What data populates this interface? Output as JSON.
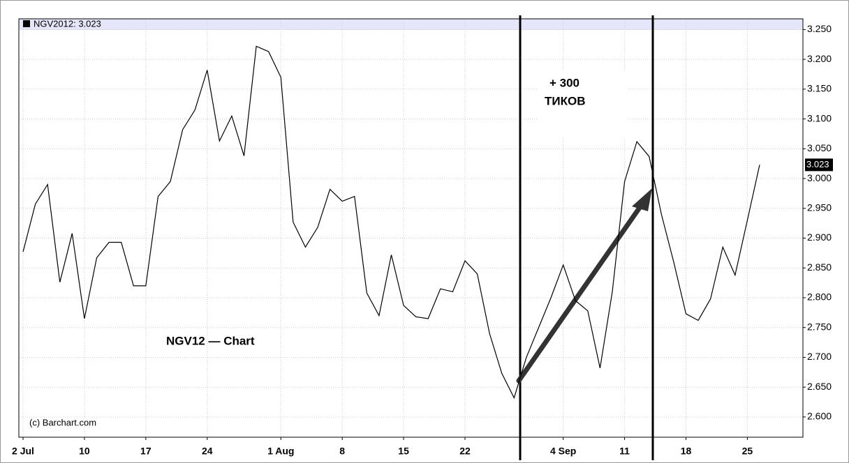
{
  "chart_data": {
    "type": "line",
    "title": "NGV2012: 3.023",
    "last_value_label": "3.023",
    "annotations": [
      "+ 300",
      "ТИКОВ",
      "NGV12 — Chart",
      "(c) Barchart.com"
    ],
    "categories": [
      "2 Jul",
      null,
      null,
      null,
      null,
      "10",
      null,
      null,
      null,
      null,
      "17",
      null,
      null,
      null,
      null,
      "24",
      null,
      null,
      null,
      null,
      null,
      "1 Aug",
      null,
      null,
      null,
      null,
      "8",
      null,
      null,
      null,
      null,
      "15",
      null,
      null,
      null,
      null,
      "22",
      null,
      null,
      null,
      null,
      null,
      null,
      null,
      "4 Sep",
      null,
      null,
      null,
      null,
      "11",
      null,
      null,
      null,
      null,
      "18",
      null,
      null,
      null,
      null,
      "25",
      null
    ],
    "series": [
      {
        "name": "NGV2012",
        "color": "#000000",
        "values": [
          2.877,
          2.957,
          2.99,
          2.826,
          2.908,
          2.765,
          2.867,
          2.893,
          2.893,
          2.82,
          2.82,
          2.97,
          2.995,
          3.082,
          3.115,
          3.182,
          3.063,
          3.105,
          3.038,
          3.222,
          3.213,
          3.17,
          2.927,
          2.885,
          2.918,
          2.982,
          2.962,
          2.97,
          2.808,
          2.77,
          2.872,
          2.787,
          2.768,
          2.765,
          2.815,
          2.81,
          2.862,
          2.84,
          2.74,
          2.673,
          2.632,
          2.7,
          2.75,
          2.8,
          2.855,
          2.795,
          2.778,
          2.682,
          2.81,
          2.995,
          3.062,
          3.037,
          2.94,
          2.86,
          2.773,
          2.762,
          2.798,
          2.885,
          2.838,
          2.93,
          3.023
        ]
      }
    ],
    "ylim": [
      2.566,
      3.268
    ],
    "yticks": [
      {
        "value": 2.6,
        "label": "2.600"
      },
      {
        "value": 2.65,
        "label": "2.650"
      },
      {
        "value": 2.7,
        "label": "2.700"
      },
      {
        "value": 2.75,
        "label": "2.750"
      },
      {
        "value": 2.8,
        "label": "2.800"
      },
      {
        "value": 2.85,
        "label": "2.850"
      },
      {
        "value": 2.9,
        "label": "2.900"
      },
      {
        "value": 2.95,
        "label": "2.950"
      },
      {
        "value": 3.0,
        "label": "3.000"
      },
      {
        "value": 3.05,
        "label": "3.050"
      },
      {
        "value": 3.1,
        "label": "3.100"
      },
      {
        "value": 3.15,
        "label": "3.150"
      },
      {
        "value": 3.2,
        "label": "3.200"
      },
      {
        "value": 3.25,
        "label": "3.250"
      }
    ],
    "grid": true
  }
}
